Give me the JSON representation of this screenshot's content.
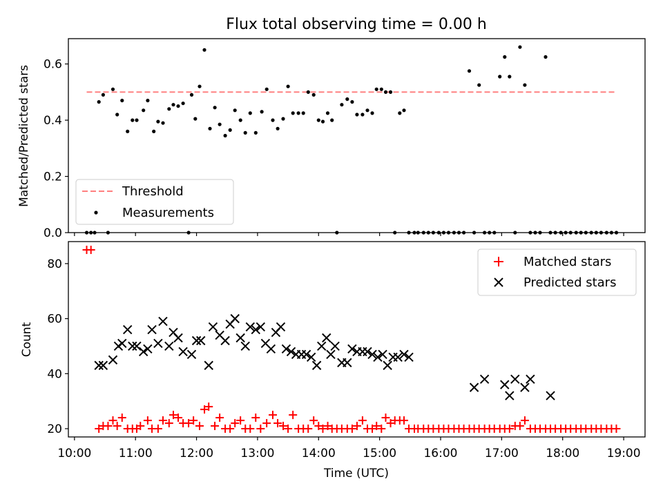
{
  "figure": {
    "title": "Flux total observing time = 0.00 h"
  },
  "chart_data": [
    {
      "type": "scatter",
      "title": "Flux total observing time = 0.00 h",
      "xlabel": "",
      "ylabel": "Matched/Predicted stars",
      "xlim": [
        9.9,
        19.35
      ],
      "ylim": [
        0.0,
        0.69
      ],
      "yticks": [
        0.0,
        0.2,
        0.4,
        0.6
      ],
      "ytick_labels": [
        "0.0",
        "0.2",
        "0.4",
        "0.6"
      ],
      "legend": {
        "placement": "lower-left",
        "entries": [
          "Threshold",
          "Measurements"
        ]
      },
      "threshold": {
        "name": "Threshold",
        "value": 0.5,
        "x_range": [
          10.2,
          18.88
        ],
        "color": "#ff7f7f",
        "style": "dashed"
      },
      "measurements": {
        "name": "Measurements",
        "color": "#000000",
        "x": [
          10.2,
          10.27,
          10.33,
          10.4,
          10.47,
          10.55,
          10.63,
          10.7,
          10.78,
          10.87,
          10.95,
          11.02,
          11.13,
          11.2,
          11.3,
          11.37,
          11.45,
          11.55,
          11.62,
          11.7,
          11.78,
          11.87,
          11.92,
          11.98,
          12.05,
          12.13,
          12.22,
          12.3,
          12.38,
          12.47,
          12.55,
          12.63,
          12.72,
          12.8,
          12.88,
          12.97,
          13.07,
          13.15,
          13.25,
          13.33,
          13.42,
          13.5,
          13.58,
          13.67,
          13.75,
          13.83,
          13.92,
          14.0,
          14.07,
          14.15,
          14.22,
          14.3,
          14.38,
          14.47,
          14.55,
          14.63,
          14.72,
          14.8,
          14.88,
          14.95,
          15.03,
          15.1,
          15.18,
          15.25,
          15.33,
          15.4,
          15.48,
          15.57,
          15.63,
          15.72,
          15.8,
          15.88,
          15.97,
          16.05,
          16.13,
          16.22,
          16.3,
          16.38,
          16.47,
          16.55,
          16.63,
          16.72,
          16.8,
          16.88,
          16.97,
          17.05,
          17.13,
          17.22,
          17.3,
          17.38,
          17.47,
          17.55,
          17.63,
          17.72,
          17.8,
          17.88,
          17.97,
          18.05,
          18.13,
          18.22,
          18.3,
          18.38,
          18.47,
          18.55,
          18.63,
          18.72,
          18.8,
          18.88
        ],
        "y": [
          0.0,
          0.0,
          0.0,
          0.465,
          0.49,
          0.0,
          0.51,
          0.42,
          0.47,
          0.36,
          0.4,
          0.4,
          0.435,
          0.47,
          0.36,
          0.395,
          0.39,
          0.44,
          0.455,
          0.45,
          0.46,
          0.0,
          0.49,
          0.405,
          0.52,
          0.65,
          0.37,
          0.445,
          0.385,
          0.345,
          0.365,
          0.435,
          0.4,
          0.355,
          0.425,
          0.355,
          0.43,
          0.51,
          0.4,
          0.37,
          0.405,
          0.52,
          0.425,
          0.425,
          0.425,
          0.5,
          0.49,
          0.4,
          0.395,
          0.425,
          0.4,
          0.0,
          0.455,
          0.475,
          0.465,
          0.42,
          0.42,
          0.435,
          0.425,
          0.51,
          0.51,
          0.5,
          0.5,
          0.0,
          0.425,
          0.435,
          0.0,
          0.0,
          0.0,
          0.0,
          0.0,
          0.0,
          0.0,
          0.0,
          0.0,
          0.0,
          0.0,
          0.0,
          0.575,
          0.0,
          0.525,
          0.0,
          0.0,
          0.0,
          0.555,
          0.625,
          0.555,
          0.0,
          0.66,
          0.525,
          0.0,
          0.0,
          0.0,
          0.625,
          0.0,
          0.0,
          0.0,
          0.0,
          0.0,
          0.0,
          0.0,
          0.0,
          0.0,
          0.0,
          0.0,
          0.0,
          0.0,
          0.0
        ]
      }
    },
    {
      "type": "scatter",
      "title": "",
      "xlabel": "Time (UTC)",
      "ylabel": "Count",
      "xlim": [
        9.9,
        19.35
      ],
      "ylim": [
        17,
        88
      ],
      "yticks": [
        20,
        40,
        60,
        80
      ],
      "ytick_labels": [
        "20",
        "40",
        "60",
        "80"
      ],
      "xticks": [
        10,
        11,
        12,
        13,
        14,
        15,
        16,
        17,
        18,
        19
      ],
      "xtick_labels": [
        "10:00",
        "11:00",
        "12:00",
        "13:00",
        "14:00",
        "15:00",
        "16:00",
        "17:00",
        "18:00",
        "19:00"
      ],
      "legend": {
        "placement": "upper-right",
        "entries": [
          "Matched stars",
          "Predicted stars"
        ]
      },
      "series": [
        {
          "name": "Matched stars",
          "marker": "+",
          "color": "#ff0000",
          "x": [
            10.2,
            10.27,
            10.4,
            10.47,
            10.55,
            10.63,
            10.7,
            10.78,
            10.87,
            10.95,
            11.02,
            11.08,
            11.2,
            11.27,
            11.37,
            11.45,
            11.55,
            11.62,
            11.7,
            11.78,
            11.87,
            11.95,
            12.05,
            12.13,
            12.2,
            12.3,
            12.38,
            12.47,
            12.55,
            12.63,
            12.72,
            12.8,
            12.88,
            12.97,
            13.05,
            13.15,
            13.25,
            13.33,
            13.42,
            13.5,
            13.58,
            13.67,
            13.75,
            13.83,
            13.92,
            14.0,
            14.07,
            14.15,
            14.22,
            14.3,
            14.38,
            14.47,
            14.55,
            14.63,
            14.72,
            14.8,
            14.88,
            14.95,
            15.03,
            15.1,
            15.18,
            15.25,
            15.33,
            15.4,
            15.48,
            15.57,
            15.63,
            15.72,
            15.8,
            15.88,
            15.97,
            16.05,
            16.13,
            16.22,
            16.3,
            16.38,
            16.47,
            16.55,
            16.63,
            16.72,
            16.8,
            16.88,
            16.97,
            17.05,
            17.13,
            17.22,
            17.3,
            17.38,
            17.47,
            17.55,
            17.63,
            17.72,
            17.8,
            17.88,
            17.97,
            18.05,
            18.13,
            18.22,
            18.3,
            18.38,
            18.47,
            18.55,
            18.63,
            18.72,
            18.8,
            18.88
          ],
          "y": [
            85,
            85,
            20,
            21,
            21,
            23,
            21,
            24,
            20,
            20,
            20,
            21,
            23,
            20,
            20,
            23,
            22,
            25,
            24,
            22,
            22,
            23,
            21,
            27,
            28,
            21,
            24,
            20,
            20,
            22,
            23,
            20,
            20,
            24,
            20,
            22,
            25,
            22,
            21,
            20,
            25,
            20,
            20,
            20,
            23,
            21,
            20,
            21,
            20,
            20,
            20,
            20,
            20,
            21,
            23,
            20,
            20,
            21,
            20,
            24,
            22,
            23,
            23,
            23,
            20,
            20,
            20,
            20,
            20,
            20,
            20,
            20,
            20,
            20,
            20,
            20,
            20,
            20,
            20,
            20,
            20,
            20,
            20,
            20,
            20,
            21,
            21,
            23,
            20,
            20,
            20,
            20,
            20,
            20,
            20,
            20,
            20,
            20,
            20,
            20,
            20,
            20,
            20,
            20,
            20,
            20
          ]
        },
        {
          "name": "Predicted stars",
          "marker": "x",
          "color": "#000000",
          "x": [
            10.4,
            10.47,
            10.63,
            10.72,
            10.78,
            10.87,
            10.95,
            11.02,
            11.13,
            11.2,
            11.27,
            11.37,
            11.45,
            11.55,
            11.62,
            11.7,
            11.78,
            11.92,
            12.0,
            12.07,
            12.2,
            12.27,
            12.38,
            12.47,
            12.55,
            12.63,
            12.72,
            12.8,
            12.88,
            12.97,
            13.05,
            13.13,
            13.22,
            13.3,
            13.38,
            13.47,
            13.55,
            13.63,
            13.72,
            13.8,
            13.88,
            13.97,
            14.05,
            14.13,
            14.2,
            14.27,
            14.38,
            14.47,
            14.55,
            14.63,
            14.72,
            14.8,
            14.88,
            14.97,
            15.05,
            15.13,
            15.22,
            15.3,
            15.4,
            15.48,
            16.55,
            16.72,
            17.05,
            17.13,
            17.22,
            17.38,
            17.47,
            17.8
          ],
          "y": [
            43,
            43,
            45,
            50,
            51,
            56,
            50,
            50,
            48,
            49,
            56,
            51,
            59,
            50,
            55,
            53,
            48,
            47,
            52,
            52,
            43,
            57,
            54,
            52,
            58,
            60,
            53,
            50,
            57,
            56,
            57,
            51,
            49,
            55,
            57,
            49,
            48,
            47,
            47,
            47,
            46,
            43,
            50,
            53,
            47,
            50,
            44,
            44,
            49,
            48,
            48,
            48,
            47,
            46,
            47,
            43,
            46,
            46,
            47,
            46,
            35,
            38,
            36,
            32,
            38,
            35,
            38,
            32
          ]
        }
      ]
    }
  ]
}
